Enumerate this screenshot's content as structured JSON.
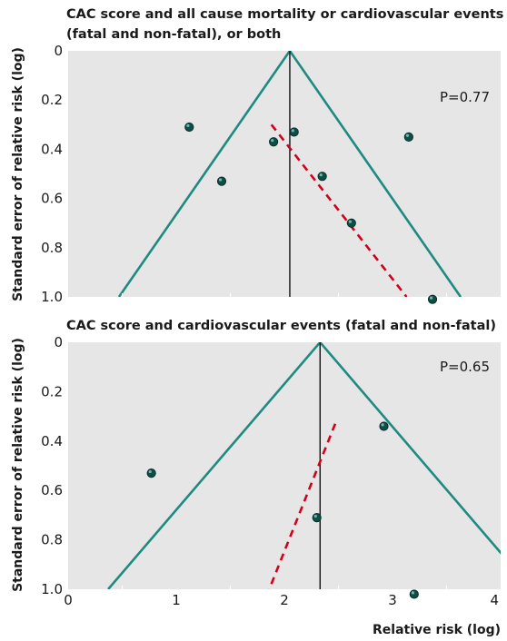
{
  "figure": {
    "x_axis_label": "Relative risk (log)",
    "x_ticks": [
      "0",
      "1",
      "2",
      "3",
      "4"
    ]
  },
  "chart_data": [
    {
      "type": "scatter",
      "subtype": "funnel plot",
      "title": "CAC score and all cause mortality or cardiovascular events (fatal and non-fatal), or both",
      "title_lines": [
        "CAC score and all cause mortality or cardiovascular events",
        "(fatal and non-fatal), or both"
      ],
      "ylabel": "Standard error of relative risk (log)",
      "y_ticks": [
        "0",
        "0.2",
        "0.4",
        "0.6",
        "0.8",
        "1.0"
      ],
      "xlim": [
        0,
        4
      ],
      "ylim": [
        0,
        1.0
      ],
      "y_inverted": true,
      "annotation": "P=0.77",
      "pooled_estimate": 2.05,
      "funnel": {
        "apex": [
          2.05,
          0
        ],
        "left_at_y1": [
          0.47,
          1.0
        ],
        "right_at_y1": [
          3.63,
          1.0
        ]
      },
      "regression_line": {
        "x": [
          1.88,
          3.13
        ],
        "y": [
          0.3,
          1.0
        ]
      },
      "points": [
        {
          "x": 1.12,
          "y": 0.31
        },
        {
          "x": 1.42,
          "y": 0.53
        },
        {
          "x": 1.9,
          "y": 0.37
        },
        {
          "x": 2.09,
          "y": 0.33
        },
        {
          "x": 2.35,
          "y": 0.51
        },
        {
          "x": 2.62,
          "y": 0.7
        },
        {
          "x": 3.15,
          "y": 0.35
        },
        {
          "x": 3.37,
          "y": 1.01
        }
      ],
      "grid": false,
      "colors": {
        "background": "#e6e6e6",
        "funnel": "#1e8a80",
        "regression": "#d0021b",
        "points": "#0d4f46"
      }
    },
    {
      "type": "scatter",
      "subtype": "funnel plot",
      "title": "CAC score and cardiovascular events (fatal and non-fatal)",
      "title_lines": [
        "CAC score and cardiovascular events (fatal and non-fatal)"
      ],
      "ylabel": "Standard error of relative risk (log)",
      "y_ticks": [
        "0",
        "0.2",
        "0.4",
        "0.6",
        "0.8",
        "1.0"
      ],
      "xlim": [
        0,
        4
      ],
      "ylim": [
        0,
        1.0
      ],
      "y_inverted": true,
      "annotation": "P=0.65",
      "pooled_estimate": 2.33,
      "funnel": {
        "apex": [
          2.33,
          0
        ],
        "left_at_y1": [
          0.37,
          1.0
        ],
        "right_at_y1": [
          4.29,
          1.0
        ]
      },
      "regression_line": {
        "x": [
          2.47,
          1.86
        ],
        "y": [
          0.33,
          1.0
        ]
      },
      "points": [
        {
          "x": 0.77,
          "y": 0.53
        },
        {
          "x": 2.3,
          "y": 0.71
        },
        {
          "x": 2.92,
          "y": 0.34
        },
        {
          "x": 3.2,
          "y": 1.02
        }
      ],
      "grid": false,
      "colors": {
        "background": "#e6e6e6",
        "funnel": "#1e8a80",
        "regression": "#d0021b",
        "points": "#0d4f46"
      }
    }
  ]
}
